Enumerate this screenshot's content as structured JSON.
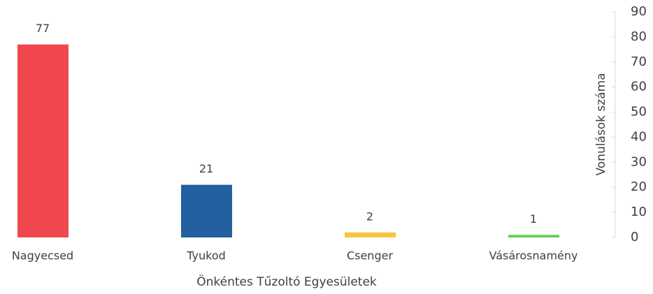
{
  "chart_data": {
    "type": "bar",
    "x_label": "Önkéntes Tűzoltó Egyesületek",
    "y_label": "Vonulások száma",
    "categories": [
      "Nagyecsed",
      "Tyukod",
      "Csenger",
      "Vásárosnamény"
    ],
    "values": [
      77,
      21,
      2,
      1
    ],
    "colors": [
      "#f0484e",
      "#22609f",
      "#f5c542",
      "#5ccf4a"
    ],
    "ylim": [
      0,
      90
    ],
    "yticks": [
      0,
      10,
      20,
      30,
      40,
      50,
      60,
      70,
      80,
      90
    ],
    "grid": false
  }
}
